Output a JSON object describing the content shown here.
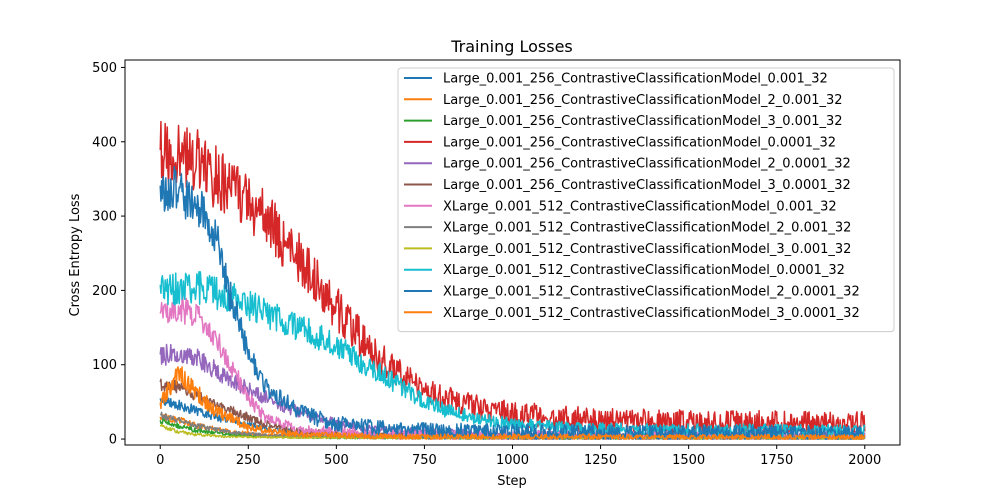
{
  "chart_data": {
    "type": "line",
    "title": "Training Losses",
    "xlabel": "Step",
    "ylabel": "Cross Entropy Loss",
    "xlim": [
      -100,
      2100
    ],
    "ylim": [
      -8,
      510
    ],
    "xticks": [
      0,
      250,
      500,
      750,
      1000,
      1250,
      1500,
      1750,
      2000
    ],
    "yticks": [
      0,
      100,
      200,
      300,
      400,
      500
    ],
    "grid": false,
    "legend_position": "upper right",
    "series": [
      {
        "name": "Large_0.001_256_ContrastiveClassificationModel_0.001_32",
        "color": "#1f77b4",
        "points": [
          [
            0,
            55
          ],
          [
            50,
            47
          ],
          [
            100,
            38
          ],
          [
            200,
            25
          ],
          [
            300,
            14
          ],
          [
            400,
            8
          ],
          [
            600,
            5
          ],
          [
            1000,
            4
          ],
          [
            2000,
            3
          ]
        ],
        "noise": 8,
        "seed": 11
      },
      {
        "name": "Large_0.001_256_ContrastiveClassificationModel_2_0.001_32",
        "color": "#ff7f0e",
        "points": [
          [
            0,
            30
          ],
          [
            50,
            26
          ],
          [
            100,
            18
          ],
          [
            200,
            10
          ],
          [
            300,
            5
          ],
          [
            500,
            3
          ],
          [
            1000,
            2
          ],
          [
            2000,
            2
          ]
        ],
        "noise": 5,
        "seed": 12
      },
      {
        "name": "Large_0.001_256_ContrastiveClassificationModel_3_0.001_32",
        "color": "#2ca02c",
        "points": [
          [
            0,
            25
          ],
          [
            50,
            18
          ],
          [
            100,
            12
          ],
          [
            200,
            6
          ],
          [
            300,
            3
          ],
          [
            500,
            2
          ],
          [
            1000,
            1
          ],
          [
            2000,
            1
          ]
        ],
        "noise": 4,
        "seed": 13
      },
      {
        "name": "Large_0.001_256_ContrastiveClassificationModel_0.0001_32",
        "color": "#d62728",
        "points": [
          [
            0,
            385
          ],
          [
            100,
            375
          ],
          [
            200,
            335
          ],
          [
            300,
            295
          ],
          [
            400,
            240
          ],
          [
            500,
            175
          ],
          [
            600,
            118
          ],
          [
            700,
            78
          ],
          [
            800,
            55
          ],
          [
            900,
            42
          ],
          [
            1000,
            33
          ],
          [
            1200,
            26
          ],
          [
            1500,
            22
          ],
          [
            2000,
            20
          ]
        ],
        "noise": 45,
        "seed": 14
      },
      {
        "name": "Large_0.001_256_ContrastiveClassificationModel_2_0.0001_32",
        "color": "#9467bd",
        "points": [
          [
            0,
            112
          ],
          [
            50,
            116
          ],
          [
            100,
            110
          ],
          [
            150,
            95
          ],
          [
            200,
            80
          ],
          [
            300,
            55
          ],
          [
            400,
            35
          ],
          [
            500,
            22
          ],
          [
            600,
            14
          ],
          [
            800,
            8
          ],
          [
            1000,
            6
          ],
          [
            2000,
            5
          ]
        ],
        "noise": 14,
        "seed": 15
      },
      {
        "name": "Large_0.001_256_ContrastiveClassificationModel_3_0.0001_32",
        "color": "#8c564b",
        "points": [
          [
            0,
            75
          ],
          [
            50,
            70
          ],
          [
            100,
            58
          ],
          [
            200,
            38
          ],
          [
            300,
            20
          ],
          [
            400,
            10
          ],
          [
            600,
            5
          ],
          [
            1000,
            3
          ],
          [
            2000,
            2
          ]
        ],
        "noise": 10,
        "seed": 16
      },
      {
        "name": "XLarge_0.001_512_ContrastiveClassificationModel_0.001_32",
        "color": "#e377c2",
        "points": [
          [
            0,
            165
          ],
          [
            50,
            175
          ],
          [
            100,
            168
          ],
          [
            150,
            140
          ],
          [
            200,
            100
          ],
          [
            250,
            55
          ],
          [
            300,
            28
          ],
          [
            400,
            12
          ],
          [
            600,
            6
          ],
          [
            1000,
            4
          ],
          [
            2000,
            3
          ]
        ],
        "noise": 18,
        "seed": 17
      },
      {
        "name": "XLarge_0.001_512_ContrastiveClassificationModel_2_0.001_32",
        "color": "#7f7f7f",
        "points": [
          [
            0,
            32
          ],
          [
            50,
            26
          ],
          [
            100,
            18
          ],
          [
            200,
            9
          ],
          [
            300,
            5
          ],
          [
            500,
            3
          ],
          [
            2000,
            2
          ]
        ],
        "noise": 5,
        "seed": 18
      },
      {
        "name": "XLarge_0.001_512_ContrastiveClassificationModel_3_0.001_32",
        "color": "#bcbd22",
        "points": [
          [
            0,
            18
          ],
          [
            50,
            10
          ],
          [
            100,
            6
          ],
          [
            200,
            3
          ],
          [
            400,
            2
          ],
          [
            2000,
            1
          ]
        ],
        "noise": 3,
        "seed": 19
      },
      {
        "name": "XLarge_0.001_512_ContrastiveClassificationModel_0.0001_32",
        "color": "#17becf",
        "points": [
          [
            0,
            200
          ],
          [
            100,
            205
          ],
          [
            200,
            190
          ],
          [
            300,
            170
          ],
          [
            400,
            150
          ],
          [
            500,
            125
          ],
          [
            600,
            95
          ],
          [
            700,
            65
          ],
          [
            800,
            40
          ],
          [
            900,
            28
          ],
          [
            1000,
            20
          ],
          [
            1200,
            14
          ],
          [
            1500,
            12
          ],
          [
            2000,
            11
          ]
        ],
        "noise": 22,
        "seed": 20
      },
      {
        "name": "XLarge_0.001_512_ContrastiveClassificationModel_2_0.0001_32",
        "color": "#1f77b4",
        "points": [
          [
            0,
            330
          ],
          [
            40,
            340
          ],
          [
            80,
            320
          ],
          [
            120,
            310
          ],
          [
            160,
            270
          ],
          [
            200,
            190
          ],
          [
            250,
            120
          ],
          [
            300,
            70
          ],
          [
            400,
            35
          ],
          [
            500,
            20
          ],
          [
            700,
            12
          ],
          [
            1000,
            9
          ],
          [
            2000,
            7
          ]
        ],
        "noise": 28,
        "seed": 21
      },
      {
        "name": "XLarge_0.001_512_ContrastiveClassificationModel_3_0.0001_32",
        "color": "#ff7f0e",
        "points": [
          [
            0,
            45
          ],
          [
            50,
            90
          ],
          [
            80,
            75
          ],
          [
            150,
            40
          ],
          [
            250,
            15
          ],
          [
            400,
            6
          ],
          [
            700,
            3
          ],
          [
            2000,
            2
          ]
        ],
        "noise": 10,
        "seed": 22
      }
    ]
  }
}
